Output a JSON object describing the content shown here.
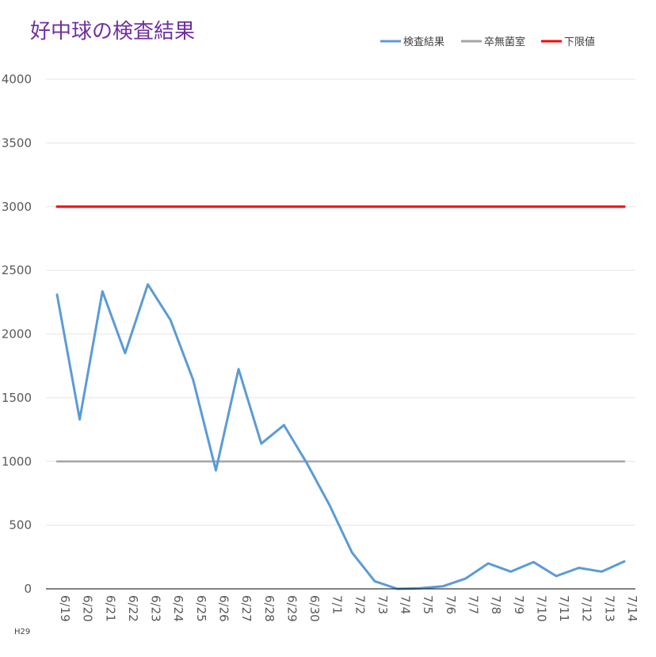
{
  "chart_data": {
    "type": "line",
    "title": "好中球の検査結果",
    "footnote": "H29",
    "categories": [
      "6/19",
      "6/20",
      "6/21",
      "6/22",
      "6/23",
      "6/24",
      "6/25",
      "6/26",
      "6/27",
      "6/28",
      "6/29",
      "6/30",
      "7/1",
      "7/2",
      "7/3",
      "7/4",
      "7/5",
      "7/6",
      "7/7",
      "7/8",
      "7/9",
      "7/10",
      "7/11",
      "7/12",
      "7/13",
      "7/14"
    ],
    "ylim": [
      0,
      4000
    ],
    "yticks": [
      0,
      500,
      1000,
      1500,
      2000,
      2500,
      3000,
      3500,
      4000
    ],
    "grid": true,
    "legend_position": "top-right",
    "series": [
      {
        "name": "検査結果",
        "color": "#5b9bd5",
        "values": [
          2310,
          1330,
          2335,
          1850,
          2390,
          2110,
          1640,
          930,
          1725,
          1140,
          1285,
          990,
          660,
          285,
          60,
          0,
          5,
          20,
          80,
          200,
          135,
          210,
          100,
          165,
          135,
          215
        ]
      },
      {
        "name": "卒無菌室",
        "color": "#a5a5a5",
        "values": [
          1000,
          1000,
          1000,
          1000,
          1000,
          1000,
          1000,
          1000,
          1000,
          1000,
          1000,
          1000,
          1000,
          1000,
          1000,
          1000,
          1000,
          1000,
          1000,
          1000,
          1000,
          1000,
          1000,
          1000,
          1000,
          1000
        ]
      },
      {
        "name": "下限値",
        "color": "#ff0000",
        "values": [
          3000,
          3000,
          3000,
          3000,
          3000,
          3000,
          3000,
          3000,
          3000,
          3000,
          3000,
          3000,
          3000,
          3000,
          3000,
          3000,
          3000,
          3000,
          3000,
          3000,
          3000,
          3000,
          3000,
          3000,
          3000,
          3000
        ]
      }
    ]
  }
}
